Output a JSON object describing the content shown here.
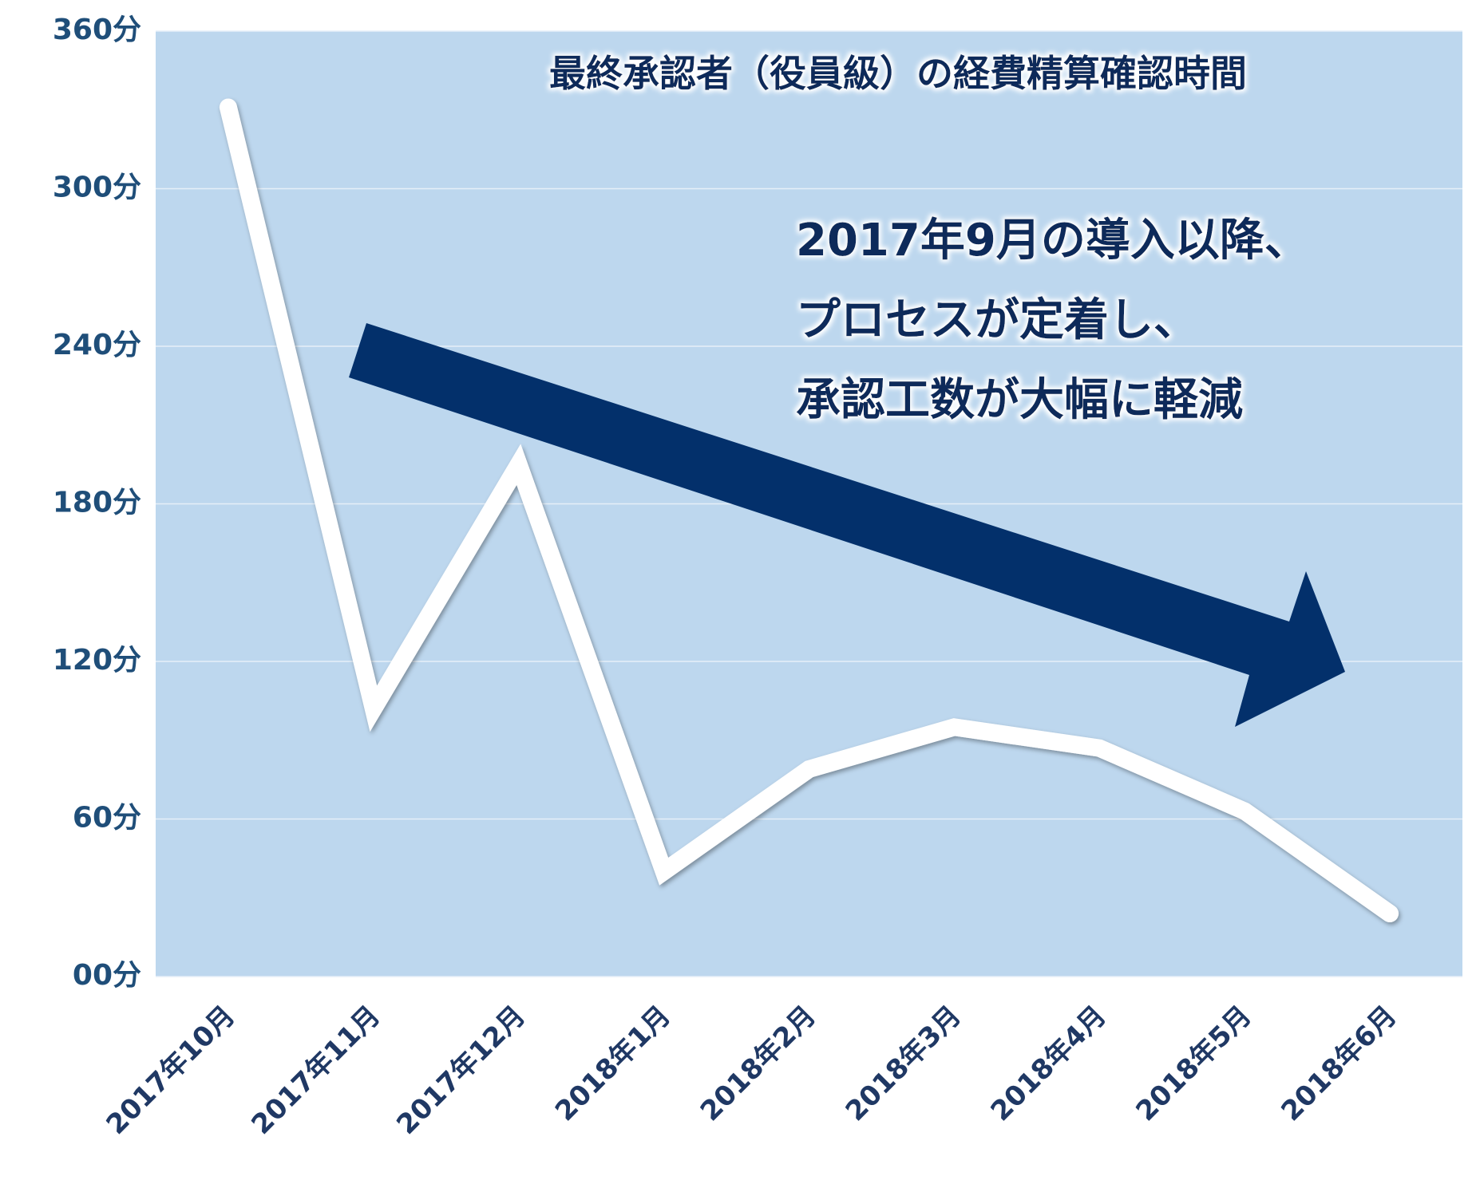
{
  "chart_data": {
    "type": "line",
    "title": "最終承認者（役員級）の経費精算確認時間",
    "annotation": [
      "2017年9月の導入以降、",
      "プロセスが定着し、",
      "承認工数が大幅に軽減"
    ],
    "categories": [
      "2017年10月",
      "2017年11月",
      "2017年12月",
      "2018年1月",
      "2018年2月",
      "2018年3月",
      "2018年4月",
      "2018年5月",
      "2018年6月"
    ],
    "values": [
      331,
      102,
      195,
      40,
      79,
      95,
      87,
      63,
      24
    ],
    "color": "#ffffff",
    "plot_background": "#bdd7ee",
    "ylim": [
      0,
      360
    ],
    "yticks": [
      {
        "value": 0,
        "label": "00分"
      },
      {
        "value": 60,
        "label": "60分"
      },
      {
        "value": 120,
        "label": "120分"
      },
      {
        "value": 180,
        "label": "180分"
      },
      {
        "value": 240,
        "label": "240分"
      },
      {
        "value": 300,
        "label": "300分"
      },
      {
        "value": 360,
        "label": "360分"
      }
    ],
    "grid": true
  }
}
